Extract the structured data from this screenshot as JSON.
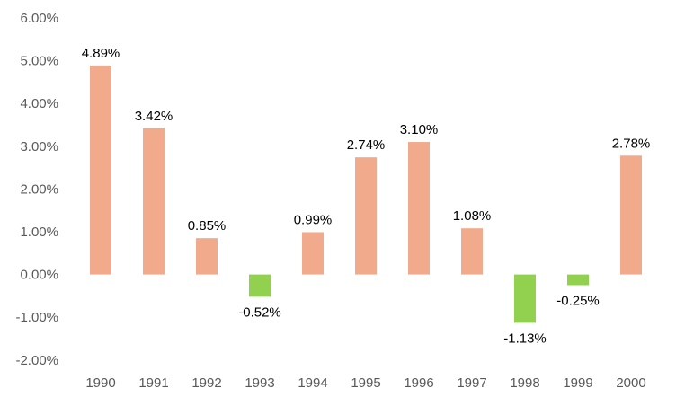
{
  "chart_data": {
    "type": "bar",
    "title": "",
    "xlabel": "",
    "ylabel": "",
    "categories": [
      "1990",
      "1991",
      "1992",
      "1993",
      "1994",
      "1995",
      "1996",
      "1997",
      "1998",
      "1999",
      "2000"
    ],
    "values": [
      4.89,
      3.42,
      0.85,
      -0.52,
      0.99,
      2.74,
      3.1,
      1.08,
      -1.13,
      -0.25,
      2.78
    ],
    "data_labels": [
      "4.89%",
      "3.42%",
      "0.85%",
      "-0.52%",
      "0.99%",
      "2.74%",
      "3.10%",
      "1.08%",
      "-1.13%",
      "-0.25%",
      "2.78%"
    ],
    "ylim": [
      -2,
      6
    ],
    "yticks": [
      6,
      5,
      4,
      3,
      2,
      1,
      0,
      -1,
      -2
    ],
    "ytick_labels": [
      "6.00%",
      "5.00%",
      "4.00%",
      "3.00%",
      "2.00%",
      "1.00%",
      "0.00%",
      "-1.00%",
      "-2.00%"
    ],
    "grid": false,
    "legend": "none",
    "colors": {
      "positive": "#F2AA8C",
      "negative": "#92D050"
    }
  }
}
